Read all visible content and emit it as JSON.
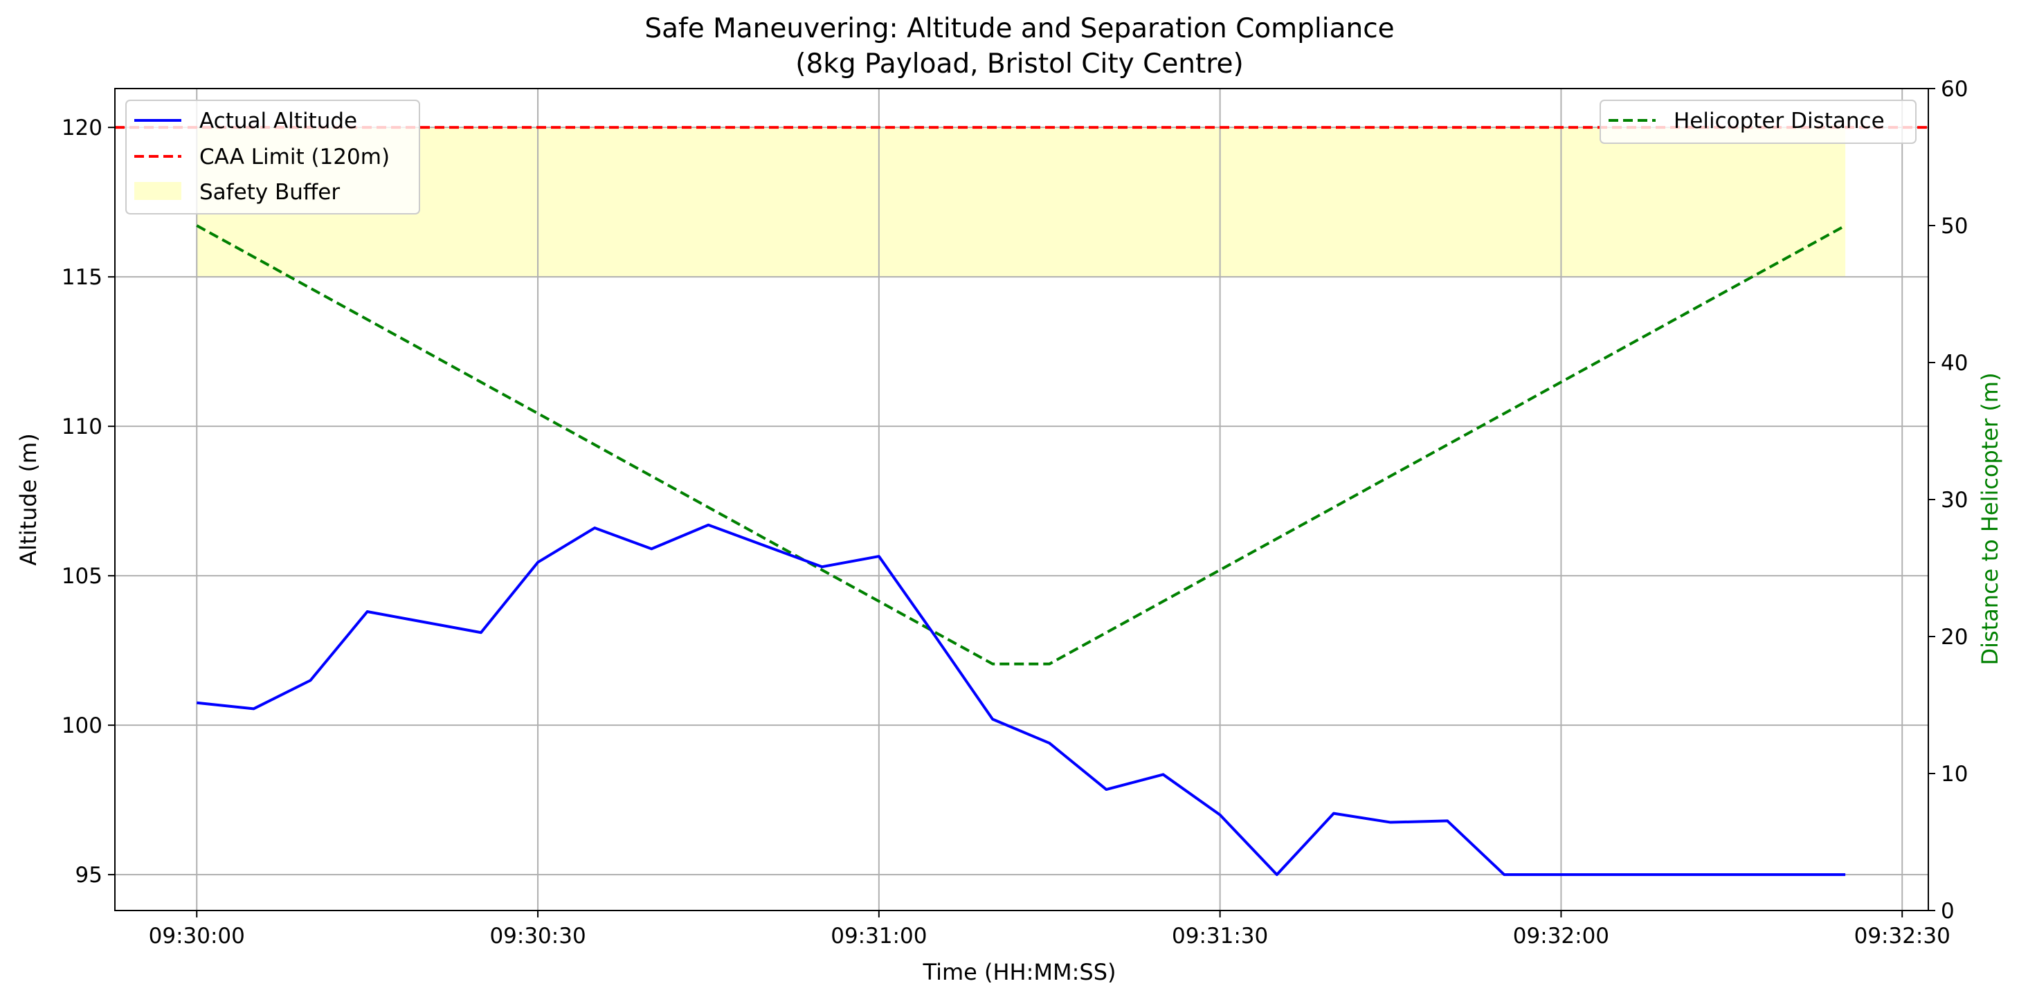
{
  "chart_data": {
    "type": "line",
    "title": "Safe Maneuvering: Altitude and Separation Compliance",
    "subtitle": "(8kg Payload, Bristol City Centre)",
    "xlabel": "Time (HH:MM:SS)",
    "ylabel": "Altitude (m)",
    "ylabel_right": "Distance to Helicopter (m)",
    "x_ticks": [
      "09:30:00",
      "09:30:30",
      "09:31:00",
      "09:31:30",
      "09:32:00",
      "09:32:30"
    ],
    "x_tick_seconds": [
      0,
      30,
      60,
      90,
      120,
      150
    ],
    "xlim_seconds": [
      -7.2,
      152.3
    ],
    "ylim": [
      93.8,
      121.3
    ],
    "y_ticks": [
      95,
      100,
      105,
      110,
      115,
      120
    ],
    "y2lim": [
      0,
      60
    ],
    "y2_ticks": [
      0,
      10,
      20,
      30,
      40,
      50,
      60
    ],
    "grid": true,
    "series": [
      {
        "name": "Actual Altitude",
        "axis": "left",
        "color": "#0000ff",
        "style": "solid",
        "x_seconds": [
          0,
          5,
          10,
          15,
          20,
          25,
          30,
          35,
          40,
          45,
          50,
          55,
          60,
          65,
          70,
          75,
          80,
          85,
          90,
          95,
          100,
          105,
          110,
          115,
          120,
          125,
          130,
          135,
          140,
          145
        ],
        "values": [
          100.75,
          100.55,
          101.5,
          103.8,
          103.45,
          103.1,
          105.45,
          106.6,
          105.9,
          106.7,
          106.0,
          105.3,
          105.65,
          102.95,
          100.2,
          99.4,
          97.85,
          98.35,
          97.0,
          95.0,
          97.05,
          96.75,
          96.8,
          95.0,
          95.0,
          95.0,
          95.0,
          95.0,
          95.0,
          95.0
        ]
      },
      {
        "name": "CAA Limit (120m)",
        "axis": "left",
        "color": "#ff0000",
        "style": "dashed",
        "value": 120
      },
      {
        "name": "Safety Buffer",
        "axis": "left",
        "color": "#ffffcc",
        "type": "band",
        "x_seconds": [
          0,
          145
        ],
        "range": [
          115,
          120
        ]
      },
      {
        "name": "Helicopter Distance",
        "axis": "right",
        "color": "#008000",
        "style": "dashed",
        "x_seconds": [
          0,
          70,
          75,
          145
        ],
        "values": [
          50,
          18,
          18,
          50
        ]
      }
    ],
    "legend_left": {
      "placement": "top-left",
      "entries": [
        "Actual Altitude",
        "CAA Limit (120m)",
        "Safety Buffer"
      ]
    },
    "legend_right": {
      "placement": "top-right",
      "entries": [
        "Helicopter Distance"
      ]
    }
  }
}
